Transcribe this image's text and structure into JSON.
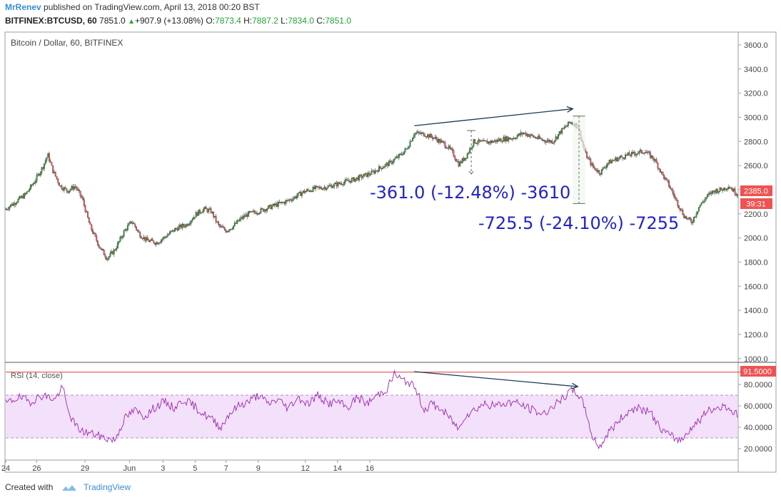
{
  "header": {
    "author": "MrRenev",
    "published": "published on TradingView.com, April 13, 2018 00:20 BST",
    "symbol": "BITFINEX:BTCUSD, 60",
    "last": "7851.0",
    "change_arrow": "▲",
    "change": "+907.9 (+13.08%)",
    "o_label": "O:",
    "o": "7873.4",
    "h_label": "H:",
    "h": "7887.2",
    "l_label": "L:",
    "l": "7834.0",
    "c_label": "C:",
    "c": "7851.0"
  },
  "footer": {
    "created_with": "Created with",
    "brand": "TradingView"
  },
  "colors": {
    "up": "#26a235",
    "down": "#ef5350",
    "measure_text": "#2222cc",
    "rsi_line": "#9c27b0",
    "rsi_band": "#f3e0fa",
    "price_label": "#ef5350",
    "arrow": "#1d3a52"
  },
  "chart_data": {
    "type": "candlestick",
    "title": "Bitcoin / Dollar, 60, BITFINEX",
    "price_axis": {
      "ticks": [
        "3600.0",
        "3400.0",
        "3200.0",
        "3000.0",
        "2800.0",
        "2600.0",
        "2400.0",
        "2200.0",
        "2000.0",
        "1800.0",
        "1600.0",
        "1400.0",
        "1200.0",
        "1000.0"
      ],
      "range": [
        975,
        3700
      ]
    },
    "time_axis": {
      "ticks": [
        "24",
        "26",
        "29",
        "Jun",
        "3",
        "5",
        "7",
        "9",
        "12",
        "14",
        "16"
      ],
      "tick_index": [
        0,
        25,
        64,
        100,
        127,
        153,
        178,
        204,
        242,
        268,
        294
      ]
    },
    "current_price_label": "2385.0",
    "countdown_label": "39:31",
    "path": [
      [
        0,
        2240
      ],
      [
        8,
        2300
      ],
      [
        16,
        2360
      ],
      [
        24,
        2480
      ],
      [
        30,
        2590
      ],
      [
        34,
        2690
      ],
      [
        38,
        2560
      ],
      [
        44,
        2430
      ],
      [
        50,
        2390
      ],
      [
        56,
        2430
      ],
      [
        62,
        2320
      ],
      [
        68,
        2100
      ],
      [
        76,
        1920
      ],
      [
        82,
        1830
      ],
      [
        88,
        1900
      ],
      [
        96,
        2060
      ],
      [
        102,
        2140
      ],
      [
        108,
        2030
      ],
      [
        114,
        1980
      ],
      [
        122,
        1960
      ],
      [
        130,
        2020
      ],
      [
        138,
        2080
      ],
      [
        146,
        2110
      ],
      [
        154,
        2200
      ],
      [
        160,
        2240
      ],
      [
        166,
        2220
      ],
      [
        172,
        2100
      ],
      [
        178,
        2060
      ],
      [
        184,
        2100
      ],
      [
        190,
        2160
      ],
      [
        196,
        2200
      ],
      [
        204,
        2220
      ],
      [
        212,
        2250
      ],
      [
        220,
        2280
      ],
      [
        226,
        2300
      ],
      [
        232,
        2330
      ],
      [
        240,
        2380
      ],
      [
        250,
        2410
      ],
      [
        258,
        2420
      ],
      [
        266,
        2440
      ],
      [
        272,
        2460
      ],
      [
        280,
        2480
      ],
      [
        288,
        2510
      ],
      [
        296,
        2540
      ],
      [
        302,
        2580
      ],
      [
        310,
        2620
      ],
      [
        318,
        2680
      ],
      [
        324,
        2740
      ],
      [
        330,
        2870
      ],
      [
        338,
        2860
      ],
      [
        346,
        2830
      ],
      [
        354,
        2780
      ],
      [
        360,
        2720
      ],
      [
        366,
        2610
      ],
      [
        372,
        2680
      ],
      [
        378,
        2800
      ],
      [
        386,
        2790
      ],
      [
        394,
        2800
      ],
      [
        402,
        2820
      ],
      [
        410,
        2830
      ],
      [
        418,
        2870
      ],
      [
        426,
        2840
      ],
      [
        434,
        2810
      ],
      [
        442,
        2800
      ],
      [
        448,
        2880
      ],
      [
        456,
        2960
      ],
      [
        462,
        2930
      ],
      [
        468,
        2700
      ],
      [
        474,
        2590
      ],
      [
        480,
        2540
      ],
      [
        486,
        2620
      ],
      [
        492,
        2650
      ],
      [
        500,
        2680
      ],
      [
        508,
        2700
      ],
      [
        516,
        2720
      ],
      [
        524,
        2650
      ],
      [
        530,
        2530
      ],
      [
        536,
        2430
      ],
      [
        542,
        2300
      ],
      [
        548,
        2180
      ],
      [
        554,
        2130
      ],
      [
        560,
        2260
      ],
      [
        566,
        2340
      ],
      [
        572,
        2390
      ],
      [
        578,
        2400
      ],
      [
        584,
        2430
      ],
      [
        590,
        2370
      ]
    ],
    "rsi": {
      "label": "RSI (14, close)",
      "ticks": [
        "80.0000",
        "60.0000",
        "40.0000",
        "20.0000"
      ],
      "range": [
        10,
        100
      ],
      "band": [
        30,
        70
      ],
      "marker_label": "91.5000",
      "marker_value": 91.5,
      "path": [
        [
          0,
          62
        ],
        [
          10,
          68
        ],
        [
          20,
          64
        ],
        [
          30,
          70
        ],
        [
          40,
          66
        ],
        [
          46,
          78
        ],
        [
          50,
          56
        ],
        [
          56,
          42
        ],
        [
          62,
          36
        ],
        [
          70,
          34
        ],
        [
          80,
          30
        ],
        [
          88,
          28
        ],
        [
          96,
          48
        ],
        [
          104,
          56
        ],
        [
          112,
          50
        ],
        [
          120,
          58
        ],
        [
          128,
          64
        ],
        [
          136,
          58
        ],
        [
          144,
          66
        ],
        [
          152,
          60
        ],
        [
          160,
          52
        ],
        [
          166,
          48
        ],
        [
          174,
          40
        ],
        [
          180,
          52
        ],
        [
          188,
          60
        ],
        [
          196,
          64
        ],
        [
          204,
          70
        ],
        [
          212,
          62
        ],
        [
          220,
          66
        ],
        [
          228,
          58
        ],
        [
          236,
          68
        ],
        [
          244,
          62
        ],
        [
          252,
          70
        ],
        [
          260,
          62
        ],
        [
          268,
          64
        ],
        [
          276,
          58
        ],
        [
          284,
          68
        ],
        [
          292,
          62
        ],
        [
          300,
          70
        ],
        [
          308,
          76
        ],
        [
          314,
          90
        ],
        [
          320,
          84
        ],
        [
          326,
          82
        ],
        [
          332,
          74
        ],
        [
          338,
          56
        ],
        [
          344,
          62
        ],
        [
          350,
          58
        ],
        [
          356,
          52
        ],
        [
          362,
          44
        ],
        [
          366,
          38
        ],
        [
          370,
          50
        ],
        [
          378,
          56
        ],
        [
          386,
          62
        ],
        [
          394,
          60
        ],
        [
          402,
          62
        ],
        [
          410,
          64
        ],
        [
          418,
          60
        ],
        [
          426,
          56
        ],
        [
          434,
          52
        ],
        [
          442,
          60
        ],
        [
          450,
          66
        ],
        [
          456,
          74
        ],
        [
          462,
          72
        ],
        [
          468,
          58
        ],
        [
          474,
          30
        ],
        [
          480,
          22
        ],
        [
          486,
          34
        ],
        [
          492,
          42
        ],
        [
          500,
          52
        ],
        [
          508,
          58
        ],
        [
          516,
          56
        ],
        [
          522,
          52
        ],
        [
          528,
          40
        ],
        [
          534,
          34
        ],
        [
          540,
          30
        ],
        [
          546,
          28
        ],
        [
          552,
          38
        ],
        [
          558,
          44
        ],
        [
          566,
          54
        ],
        [
          574,
          58
        ],
        [
          582,
          60
        ],
        [
          590,
          52
        ]
      ]
    },
    "annotations": {
      "measure1": "-361.0 (-12.48%) -3610",
      "measure2": "-725.5 (-24.10%) -7255"
    }
  }
}
